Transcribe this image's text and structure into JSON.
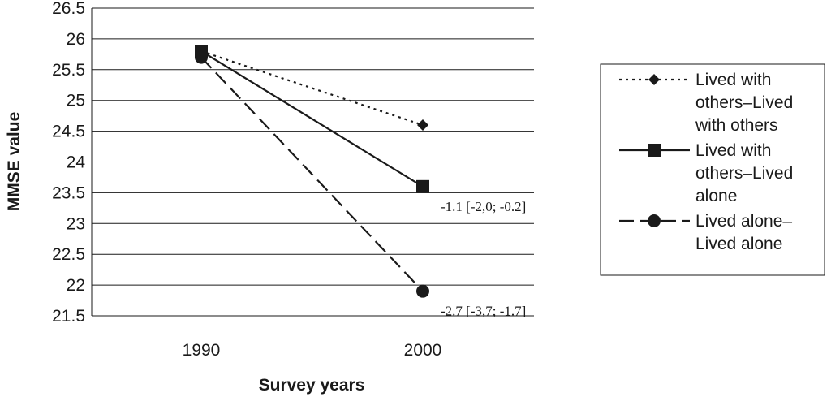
{
  "chart_data": {
    "type": "line",
    "categories": [
      "1990",
      "2000"
    ],
    "xlabel": "Survey years",
    "ylabel": "MMSE value",
    "ylim": [
      21.5,
      26.5
    ],
    "yticks": [
      "21.5",
      "22",
      "22.5",
      "23",
      "23.5",
      "24",
      "24.5",
      "25",
      "25.5",
      "26",
      "26.5"
    ],
    "grid": true,
    "legend_position": "right",
    "series": [
      {
        "name": "Lived with others–Lived with others",
        "legend_lines": [
          "Lived with",
          "others–Lived",
          "with others"
        ],
        "values": [
          25.8,
          24.6
        ],
        "marker": "diamond",
        "dash": "dotted"
      },
      {
        "name": "Lived with others–Lived alone",
        "legend_lines": [
          "Lived with",
          "others–Lived",
          "alone"
        ],
        "values": [
          25.8,
          23.6
        ],
        "marker": "square",
        "dash": "solid"
      },
      {
        "name": "Lived alone–Lived alone",
        "legend_lines": [
          "Lived alone–",
          "Lived alone"
        ],
        "values": [
          25.7,
          21.9
        ],
        "marker": "circle",
        "dash": "dashed"
      }
    ],
    "annotations": [
      {
        "series": 1,
        "text": "-1.1 [-2,0; -0.2]"
      },
      {
        "series": 2,
        "text": "-2.7 [-3,7; -1.7]"
      }
    ],
    "colors": {
      "line": "#1a1a1a",
      "grid": "#1a1a1a"
    }
  }
}
